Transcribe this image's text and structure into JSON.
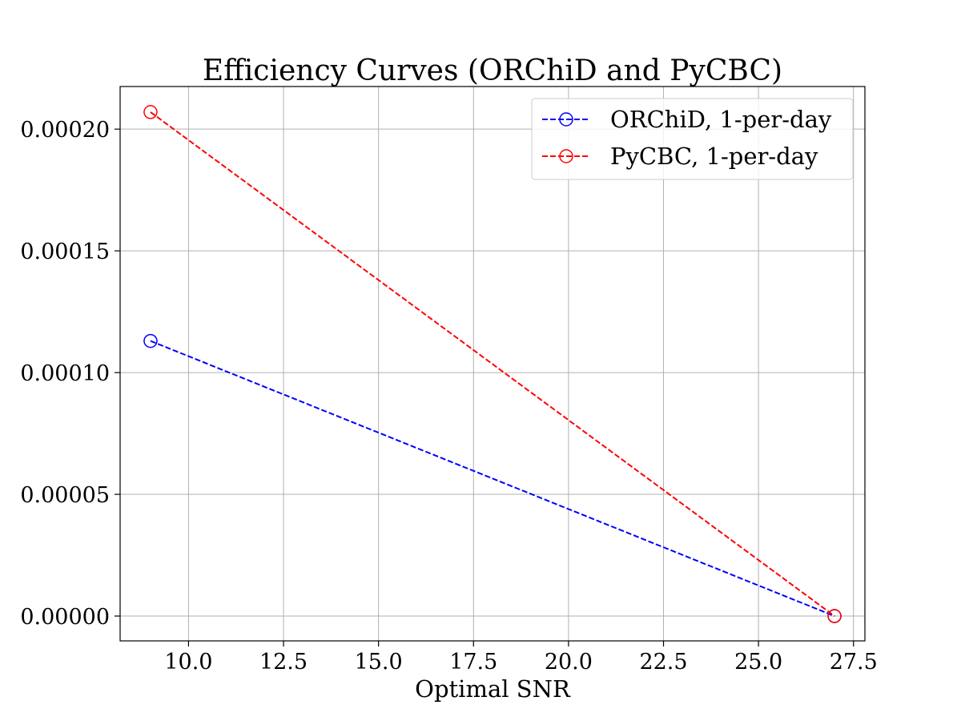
{
  "chart_data": {
    "type": "line",
    "title": "Efficiency Curves (ORChiD and PyCBC)",
    "xlabel": "Optimal SNR",
    "ylabel": "",
    "xlim": [
      8.2,
      27.8
    ],
    "ylim": [
      -1.02e-05,
      0.0002175
    ],
    "xticks": [
      10.0,
      12.5,
      15.0,
      17.5,
      20.0,
      22.5,
      25.0,
      27.5
    ],
    "xtick_labels": [
      "10.0",
      "12.5",
      "15.0",
      "17.5",
      "20.0",
      "22.5",
      "25.0",
      "27.5"
    ],
    "yticks": [
      0.0,
      5e-05,
      0.0001,
      0.00015,
      0.0002
    ],
    "ytick_labels": [
      "0.00000",
      "0.00005",
      "0.00010",
      "0.00015",
      "0.00020"
    ],
    "grid": true,
    "legend_position": "top-right",
    "series": [
      {
        "name": "ORChiD, 1-per-day",
        "color": "#0000ff",
        "linestyle": "dashed",
        "marker": "open-circle",
        "x": [
          9.0,
          27.0
        ],
        "y": [
          0.000113,
          0.0
        ]
      },
      {
        "name": "PyCBC, 1-per-day",
        "color": "#ff0000",
        "linestyle": "dashed",
        "marker": "open-circle",
        "x": [
          9.0,
          27.0
        ],
        "y": [
          0.000207,
          0.0
        ]
      }
    ]
  }
}
